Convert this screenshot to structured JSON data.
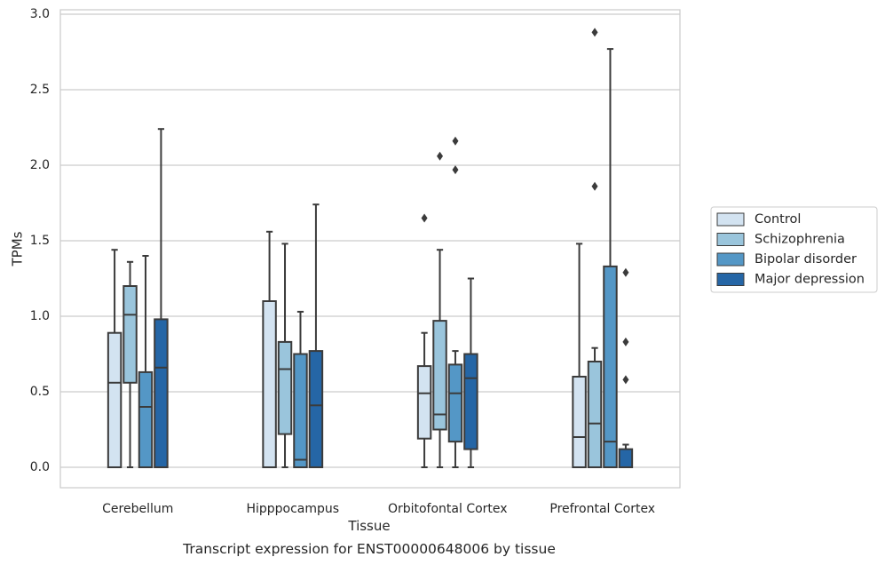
{
  "chart_data": {
    "type": "boxplot",
    "caption": "Transcript expression for ENST00000648006 by tissue",
    "xlabel": "Tissue",
    "ylabel": "TPMs",
    "ylim": [
      -0.14,
      3.03
    ],
    "yticks": [
      0.0,
      0.5,
      1.0,
      1.5,
      2.0,
      2.5,
      3.0
    ],
    "ytick_labels": [
      "0.0",
      "0.5",
      "1.0",
      "1.5",
      "2.0",
      "2.5",
      "3.0"
    ],
    "grid": "horizontal",
    "legend_position": "right",
    "categories": [
      "Cerebellum",
      "Hipppocampus",
      "Orbitofontal Cortex",
      "Prefrontal Cortex"
    ],
    "series": [
      {
        "name": "Control",
        "color": "#d3e3f1",
        "boxes": [
          {
            "whislo": 0.0,
            "q1": 0.0,
            "med": 0.56,
            "q3": 0.89,
            "whishi": 1.44,
            "fliers": []
          },
          {
            "whislo": 0.0,
            "q1": 0.0,
            "med": 0.0,
            "q3": 1.1,
            "whishi": 1.56,
            "fliers": []
          },
          {
            "whislo": 0.0,
            "q1": 0.19,
            "med": 0.49,
            "q3": 0.67,
            "whishi": 0.89,
            "fliers": [
              1.65
            ]
          },
          {
            "whislo": 0.0,
            "q1": 0.0,
            "med": 0.2,
            "q3": 0.6,
            "whishi": 1.48,
            "fliers": []
          }
        ]
      },
      {
        "name": "Schizophrenia",
        "color": "#9ac5dc",
        "boxes": [
          {
            "whislo": 0.0,
            "q1": 0.56,
            "med": 1.01,
            "q3": 1.2,
            "whishi": 1.36,
            "fliers": []
          },
          {
            "whislo": 0.0,
            "q1": 0.22,
            "med": 0.65,
            "q3": 0.83,
            "whishi": 1.48,
            "fliers": []
          },
          {
            "whislo": 0.0,
            "q1": 0.25,
            "med": 0.35,
            "q3": 0.97,
            "whishi": 1.44,
            "fliers": [
              2.06
            ]
          },
          {
            "whislo": 0.0,
            "q1": 0.0,
            "med": 0.29,
            "q3": 0.7,
            "whishi": 0.79,
            "fliers": [
              1.86,
              2.88
            ]
          }
        ]
      },
      {
        "name": "Bipolar disorder",
        "color": "#5497c6",
        "boxes": [
          {
            "whislo": 0.0,
            "q1": 0.0,
            "med": 0.4,
            "q3": 0.63,
            "whishi": 1.4,
            "fliers": []
          },
          {
            "whislo": 0.0,
            "q1": 0.0,
            "med": 0.05,
            "q3": 0.75,
            "whishi": 1.03,
            "fliers": []
          },
          {
            "whislo": 0.0,
            "q1": 0.17,
            "med": 0.49,
            "q3": 0.68,
            "whishi": 0.77,
            "fliers": [
              1.97,
              2.16
            ]
          },
          {
            "whislo": 0.0,
            "q1": 0.0,
            "med": 0.17,
            "q3": 1.33,
            "whishi": 2.77,
            "fliers": []
          }
        ]
      },
      {
        "name": "Major depression",
        "color": "#2566a6",
        "boxes": [
          {
            "whislo": 0.0,
            "q1": 0.0,
            "med": 0.66,
            "q3": 0.98,
            "whishi": 2.24,
            "fliers": []
          },
          {
            "whislo": 0.0,
            "q1": 0.0,
            "med": 0.41,
            "q3": 0.77,
            "whishi": 1.74,
            "fliers": []
          },
          {
            "whislo": 0.0,
            "q1": 0.12,
            "med": 0.59,
            "q3": 0.75,
            "whishi": 1.25,
            "fliers": []
          },
          {
            "whislo": 0.0,
            "q1": 0.0,
            "med": 0.0,
            "q3": 0.12,
            "whishi": 0.15,
            "fliers": [
              0.58,
              0.83,
              1.29
            ]
          }
        ]
      }
    ]
  }
}
